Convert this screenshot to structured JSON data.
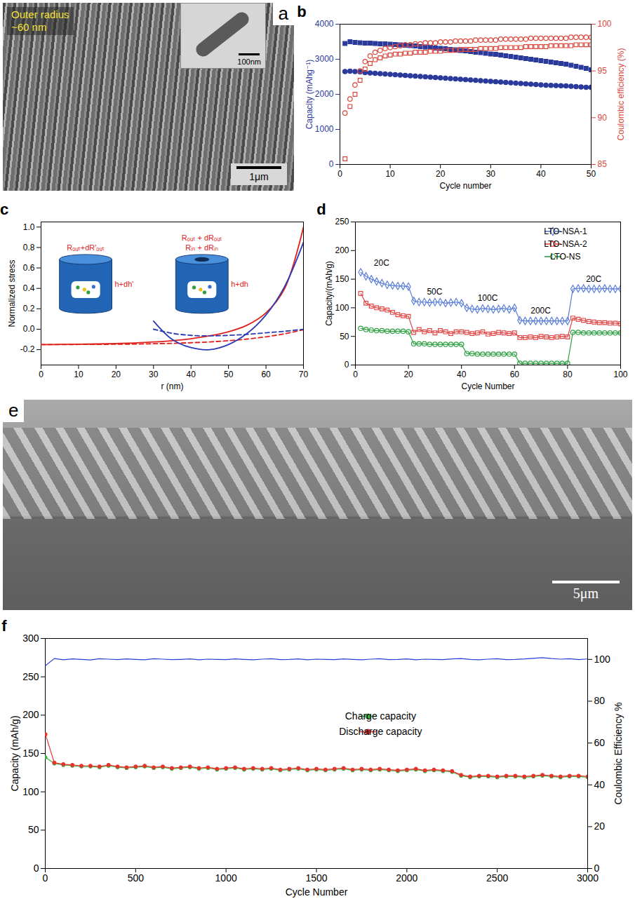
{
  "chart_data": [
    {
      "type": "image",
      "panel_label": "a",
      "annotations": [
        "Outer radius",
        "~60 nm"
      ],
      "inset_scale_bar": "100nm",
      "scale_bar": "1μm"
    },
    {
      "type": "scatter",
      "panel_label": "b",
      "x_label": "Cycle number",
      "y_label": "Capacity (mAhg⁻¹)",
      "y2_label": "Coulombic efficiency (%)",
      "x": [
        1,
        2,
        3,
        4,
        5,
        6,
        7,
        8,
        9,
        10,
        11,
        12,
        13,
        14,
        15,
        16,
        17,
        18,
        19,
        20,
        21,
        22,
        23,
        24,
        25,
        26,
        27,
        28,
        29,
        30,
        31,
        32,
        33,
        34,
        35,
        36,
        37,
        38,
        39,
        40,
        41,
        42,
        43,
        44,
        45,
        46,
        47,
        48,
        49,
        50
      ],
      "xlim": [
        0,
        50
      ],
      "xticks": [
        0,
        10,
        20,
        30,
        40,
        50
      ],
      "ylim": [
        0,
        4000
      ],
      "yticks": [
        0,
        1000,
        2000,
        3000,
        4000
      ],
      "y2lim": [
        85,
        100
      ],
      "y2ticks": [
        85,
        90,
        95,
        100
      ],
      "series": [
        {
          "color": "#2a3a9b",
          "marker": "square",
          "values": [
            3450,
            3500,
            3480,
            3470,
            3460,
            3460,
            3450,
            3440,
            3440,
            3430,
            3420,
            3410,
            3400,
            3390,
            3380,
            3360,
            3350,
            3340,
            3320,
            3310,
            3300,
            3280,
            3270,
            3250,
            3240,
            3220,
            3200,
            3190,
            3170,
            3150,
            3140,
            3120,
            3100,
            3080,
            3060,
            3040,
            3020,
            3000,
            2980,
            2960,
            2940,
            2920,
            2900,
            2880,
            2860,
            2830,
            2800,
            2770,
            2740,
            2700
          ]
        },
        {
          "color": "#2a3a9b",
          "marker": "circle",
          "values": [
            2650,
            2660,
            2650,
            2640,
            2620,
            2610,
            2600,
            2590,
            2580,
            2570,
            2560,
            2550,
            2540,
            2530,
            2520,
            2510,
            2500,
            2490,
            2480,
            2470,
            2460,
            2450,
            2440,
            2430,
            2420,
            2410,
            2400,
            2390,
            2380,
            2370,
            2360,
            2350,
            2340,
            2330,
            2320,
            2310,
            2300,
            2290,
            2280,
            2270,
            2260,
            2255,
            2250,
            2245,
            2240,
            2230,
            2220,
            2210,
            2200,
            2200
          ]
        },
        {
          "color": "#d9463b",
          "marker": "square_open",
          "axis": "y2",
          "values": [
            85.6,
            91.2,
            92.5,
            94.0,
            95.2,
            95.8,
            96.2,
            96.4,
            96.6,
            96.7,
            96.8,
            96.8,
            96.9,
            96.9,
            97.0,
            97.0,
            97.0,
            97.1,
            97.1,
            97.1,
            97.2,
            97.2,
            97.2,
            97.3,
            97.3,
            97.3,
            97.3,
            97.4,
            97.4,
            97.4,
            97.4,
            97.5,
            97.5,
            97.5,
            97.5,
            97.5,
            97.6,
            97.6,
            97.6,
            97.6,
            97.6,
            97.7,
            97.7,
            97.7,
            97.7,
            97.7,
            97.8,
            97.8,
            97.8,
            97.8
          ]
        },
        {
          "color": "#d9463b",
          "marker": "circle_open",
          "axis": "y2",
          "values": [
            90.5,
            92.0,
            93.5,
            95.0,
            96.0,
            96.6,
            97.0,
            97.2,
            97.4,
            97.5,
            97.6,
            97.7,
            97.8,
            97.8,
            97.9,
            97.9,
            98.0,
            98.0,
            98.0,
            98.1,
            98.1,
            98.1,
            98.2,
            98.2,
            98.2,
            98.2,
            98.3,
            98.3,
            98.3,
            98.3,
            98.3,
            98.4,
            98.4,
            98.4,
            98.4,
            98.4,
            98.4,
            98.5,
            98.5,
            98.5,
            98.5,
            98.5,
            98.5,
            98.5,
            98.5,
            98.6,
            98.6,
            98.6,
            98.6,
            98.6
          ]
        }
      ]
    },
    {
      "type": "line",
      "panel_label": "c",
      "x_label": "r (nm)",
      "y_label": "Normalized stress",
      "x": [
        0,
        5,
        10,
        15,
        20,
        25,
        30,
        35,
        40,
        45,
        50,
        55,
        60,
        65,
        70
      ],
      "xlim": [
        0,
        70
      ],
      "xticks": [
        0,
        10,
        20,
        30,
        40,
        50,
        60,
        70
      ],
      "ylim": [
        -0.35,
        1.05
      ],
      "yticks": [
        -0.2,
        {
          "value": 0,
          "label": "0.0"
        },
        0.2,
        0.4,
        0.6,
        0.8,
        {
          "value": 1,
          "label": "1.0"
        }
      ],
      "annotations": [
        "Rₒᵤₜ+dR'ₒᵤₜ",
        "h+dh'",
        "Rₒᵤₜ + dRₒᵤₜ",
        "Rᵢₙ + dRᵢₙ",
        "h+dh"
      ],
      "series": [
        {
          "color": "#e0201b",
          "line_style": "solid",
          "values": [
            -0.15,
            -0.149,
            -0.147,
            -0.144,
            -0.14,
            -0.134,
            -0.125,
            -0.112,
            -0.093,
            -0.065,
            -0.025,
            0.04,
            0.16,
            0.4,
            1.0
          ]
        },
        {
          "color": "#e0201b",
          "line_style": "dashed",
          "values": [
            -0.15,
            -0.15,
            -0.149,
            -0.148,
            -0.147,
            -0.145,
            -0.142,
            -0.138,
            -0.132,
            -0.124,
            -0.112,
            -0.096,
            -0.074,
            -0.044,
            -0.005
          ]
        },
        {
          "color": "#2a3bb5",
          "line_style": "solid",
          "values": [
            null,
            null,
            null,
            null,
            null,
            null,
            0.08,
            -0.1,
            -0.18,
            -0.2,
            -0.15,
            -0.04,
            0.14,
            0.42,
            0.85
          ]
        },
        {
          "color": "#2a3bb5",
          "line_style": "dashed",
          "values": [
            null,
            null,
            null,
            null,
            null,
            null,
            0.0,
            -0.04,
            -0.06,
            -0.065,
            -0.06,
            -0.05,
            -0.035,
            -0.02,
            0.0
          ]
        }
      ]
    },
    {
      "type": "line",
      "panel_label": "d",
      "x_label": "Cycle Number",
      "y_label": "Capacity/(mAh/g)",
      "legend": "top-right",
      "x": [
        2,
        4,
        6,
        8,
        10,
        12,
        14,
        16,
        18,
        20,
        22,
        24,
        26,
        28,
        30,
        32,
        34,
        36,
        38,
        40,
        42,
        44,
        46,
        48,
        50,
        52,
        54,
        56,
        58,
        60,
        62,
        64,
        66,
        68,
        70,
        72,
        74,
        76,
        78,
        80,
        82,
        84,
        86,
        88,
        90,
        92,
        94,
        96,
        98,
        100
      ],
      "xlim": [
        0,
        100
      ],
      "xticks": [
        0,
        20,
        40,
        60,
        80,
        100
      ],
      "ylim": [
        0,
        250
      ],
      "yticks": [
        0,
        50,
        100,
        150,
        200,
        250
      ],
      "annotations": [
        "20C",
        "50C",
        "100C",
        "200C",
        "20C"
      ],
      "series": [
        {
          "name": "LTO-NSA-1",
          "color": "#5b7ed8",
          "marker": "diamond_open",
          "values": [
            162,
            155,
            150,
            146,
            143,
            140,
            139,
            138,
            138,
            137,
            112,
            110,
            110,
            109,
            110,
            110,
            108,
            109,
            110,
            108,
            100,
            98,
            97,
            99,
            98,
            97,
            98,
            99,
            97,
            100,
            78,
            77,
            77,
            77,
            77,
            77,
            77,
            77,
            77,
            77,
            133,
            134,
            134,
            133,
            133,
            133,
            134,
            133,
            133,
            133
          ]
        },
        {
          "name": "LTO-NSA-2",
          "color": "#e04545",
          "marker": "square_open",
          "values": [
            125,
            108,
            103,
            100,
            98,
            96,
            92,
            88,
            86,
            85,
            57,
            62,
            58,
            60,
            56,
            60,
            58,
            55,
            58,
            58,
            57,
            55,
            56,
            58,
            54,
            55,
            57,
            56,
            55,
            56,
            48,
            48,
            49,
            48,
            50,
            49,
            48,
            49,
            50,
            49,
            82,
            80,
            78,
            76,
            75,
            74,
            74,
            73,
            73,
            72
          ]
        },
        {
          "name": "LTO-NS",
          "color": "#2ea043",
          "marker": "circle_open",
          "values": [
            64,
            62,
            61,
            60,
            60,
            59,
            59,
            59,
            59,
            58,
            37,
            37,
            37,
            36,
            36,
            36,
            36,
            36,
            36,
            36,
            20,
            20,
            19,
            19,
            19,
            19,
            19,
            19,
            19,
            19,
            3,
            3,
            3,
            3,
            3,
            3,
            3,
            3,
            3,
            3,
            57,
            57,
            56,
            56,
            56,
            56,
            56,
            56,
            56,
            56
          ]
        }
      ]
    },
    {
      "type": "image",
      "panel_label": "e",
      "scale_bar": "5μm"
    },
    {
      "type": "line",
      "panel_label": "f",
      "x_label": "Cycle Number",
      "y_label": "Capacity (mAh/g)",
      "y2_label": "Coulombic Efficiency %",
      "legend": "right",
      "x": [
        1,
        50,
        100,
        150,
        200,
        250,
        300,
        350,
        400,
        450,
        500,
        550,
        600,
        650,
        700,
        750,
        800,
        850,
        900,
        950,
        1000,
        1050,
        1100,
        1150,
        1200,
        1250,
        1300,
        1350,
        1400,
        1450,
        1500,
        1550,
        1600,
        1650,
        1700,
        1750,
        1800,
        1850,
        1900,
        1950,
        2000,
        2050,
        2100,
        2150,
        2200,
        2250,
        2300,
        2350,
        2400,
        2450,
        2500,
        2550,
        2600,
        2650,
        2700,
        2750,
        2800,
        2850,
        2900,
        2950,
        3000
      ],
      "xlim": [
        0,
        3000
      ],
      "xticks": [
        0,
        500,
        1000,
        1500,
        2000,
        2500,
        3000
      ],
      "ylim": [
        0,
        300
      ],
      "yticks": [
        0,
        50,
        100,
        150,
        200,
        250,
        300
      ],
      "y2lim": [
        0,
        110
      ],
      "y2ticks": [
        0,
        20,
        40,
        60,
        80,
        100
      ],
      "series": [
        {
          "name": "Charge capacity",
          "color": "#3cb043",
          "marker": "circle",
          "values": [
            145,
            137,
            135,
            134,
            133,
            133,
            132,
            134,
            132,
            131,
            132,
            133,
            131,
            132,
            130,
            131,
            132,
            130,
            131,
            129,
            130,
            131,
            129,
            130,
            129,
            130,
            128,
            129,
            130,
            128,
            129,
            128,
            129,
            130,
            128,
            129,
            128,
            129,
            128,
            127,
            128,
            129,
            127,
            128,
            127,
            126,
            121,
            119,
            120,
            120,
            119,
            120,
            120,
            119,
            120,
            121,
            120,
            119,
            120,
            120,
            119
          ]
        },
        {
          "name": "Discharge capacity",
          "color": "#e8322b",
          "marker": "circle",
          "values": [
            175,
            138,
            136,
            135,
            134,
            134,
            133,
            135,
            133,
            132,
            133,
            134,
            132,
            133,
            131,
            132,
            133,
            131,
            132,
            130,
            131,
            132,
            130,
            131,
            130,
            131,
            129,
            130,
            131,
            129,
            130,
            129,
            130,
            131,
            129,
            130,
            129,
            130,
            129,
            128,
            129,
            130,
            128,
            129,
            128,
            127,
            122,
            120,
            121,
            121,
            120,
            121,
            121,
            120,
            121,
            122,
            121,
            120,
            121,
            121,
            120
          ]
        },
        {
          "color": "#2b3fd6",
          "marker": "none",
          "axis": "y2",
          "values": [
            97,
            100.4,
            99.8,
            100.2,
            100.0,
            99.7,
            100.3,
            100.1,
            99.9,
            100.2,
            100.0,
            99.8,
            100.3,
            100.1,
            99.9,
            100.0,
            100.2,
            99.8,
            100.1,
            100.0,
            99.9,
            100.2,
            100.0,
            99.8,
            100.1,
            100.3,
            99.9,
            100.0,
            100.2,
            99.8,
            100.1,
            100.0,
            99.9,
            100.2,
            100.0,
            99.8,
            100.1,
            100.3,
            99.9,
            100.0,
            100.2,
            99.8,
            100.1,
            100.0,
            99.9,
            100.2,
            100.4,
            100.0,
            99.8,
            100.1,
            100.3,
            99.9,
            100.0,
            100.2,
            100.5,
            100.8,
            100.4,
            100.1,
            100.3,
            99.9,
            100.2
          ]
        }
      ]
    }
  ]
}
